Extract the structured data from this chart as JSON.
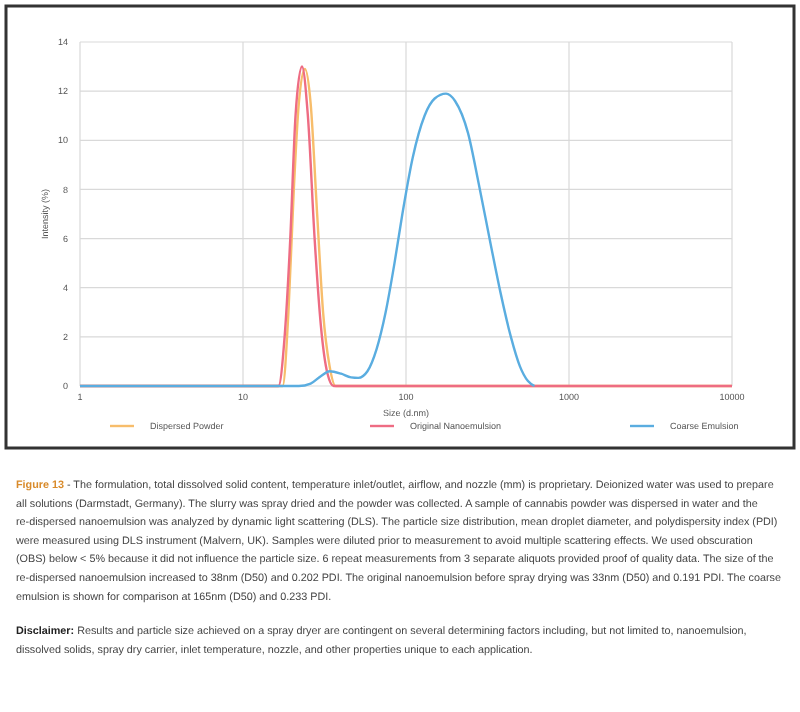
{
  "chart_data": {
    "type": "line",
    "xlabel": "Size (d.nm)",
    "ylabel": "Intensity (%)",
    "log": "x",
    "xlim": [
      1,
      10000
    ],
    "xticks": [
      1,
      10,
      100,
      1000,
      10000
    ],
    "ylim": [
      0,
      14
    ],
    "yticks": [
      0,
      2,
      4,
      6,
      8,
      10,
      12,
      14
    ],
    "grid": true,
    "legend": "bottom",
    "series": [
      {
        "name": "Dispersed Powder",
        "color": "#f7bd6b",
        "x": [
          1,
          16,
          17.5,
          19,
          20.5,
          22,
          24,
          26,
          28.5,
          31,
          34,
          37,
          10000
        ],
        "values": [
          0,
          0,
          0,
          3,
          8,
          11.5,
          12.9,
          11.5,
          7,
          3,
          0.8,
          0,
          0
        ]
      },
      {
        "name": "Original Nanoemulsion",
        "color": "#ee6c83",
        "x": [
          1,
          15,
          16.5,
          18,
          19.5,
          21,
          23,
          25,
          27.5,
          30,
          33,
          36,
          10000
        ],
        "values": [
          0,
          0,
          0,
          2,
          6,
          11,
          13,
          11,
          6,
          2.5,
          0.5,
          0,
          0
        ]
      },
      {
        "name": "Coarse Emulsion",
        "color": "#5aade0",
        "x": [
          1,
          18,
          22,
          26,
          30,
          34,
          40,
          46,
          51,
          58,
          66,
          75,
          85,
          95,
          110,
          130,
          150,
          176,
          200,
          240,
          280,
          330,
          380,
          440,
          500,
          560,
          614
        ],
        "values": [
          0,
          0,
          0,
          0.1,
          0.4,
          0.6,
          0.5,
          0.35,
          0.33,
          0.6,
          1.5,
          3,
          5,
          7,
          9.3,
          11,
          11.7,
          11.9,
          11.6,
          10.3,
          8.2,
          5.8,
          3.8,
          2,
          0.8,
          0.2,
          0
        ]
      }
    ],
    "annotations": [
      "Figure 13 - The formulation, total dissolved solid content, temperature inlet/outlet, airflow, and nozzle (mm) is proprietary. Deionized water was used to prepare all solutions (Darmstadt, Germany). The slurry was spray dried and the powder was collected. A sample of cannabis powder was dispersed in water and the re-dispersed nanoemulsion was analyzed by dynamic light scattering (DLS). The particle size distribution, mean droplet diameter, and polydispersity index (PDI) were measured using DLS instrument (Malvern, UK). Samples were diluted prior to measurement to avoid multiple scattering effects. We used obscuration (OBS) below < 5% because it did not influence the particle size. 6 repeat measurements from 3 separate aliquots provided proof of quality data. The size of the re-dispersed nanoemulsion increased to 38nm (D50) and 0.202 PDI. The original nanoemulsion before spray drying was 33nm (D50) and 0.191 PDI. The coarse emulsion is shown for comparison at 165nm (D50) and 0.233 PDI.",
      "Disclaimer: Results and particle size achieved on a spray dryer are contingent on several determining factors including, but not limited to, nanoemulsion, dissolved solids, spray dry carrier, inlet temperature, nozzle, and other properties unique to each application."
    ]
  }
}
